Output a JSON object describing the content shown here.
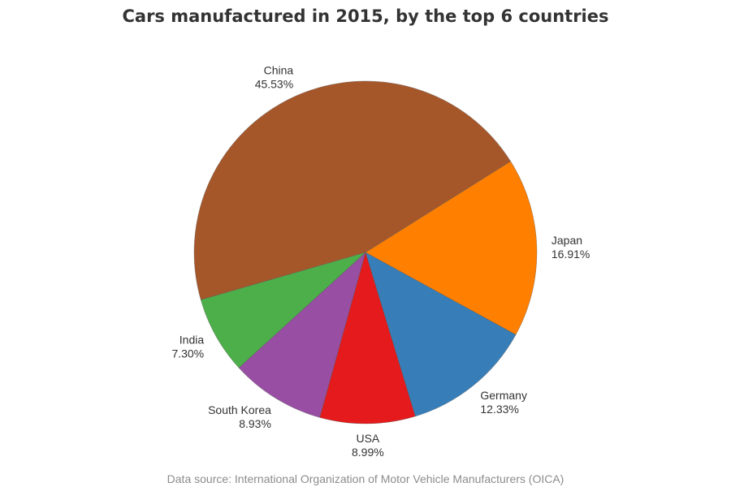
{
  "chart_data": {
    "type": "pie",
    "title": "Cars manufactured in 2015, by the top 6 countries",
    "source": "Data source: International Organization of Motor Vehicle Manufacturers (OICA)",
    "slices": [
      {
        "label": "China",
        "value": 45.53,
        "value_label": "45.53%",
        "color": "#a6572a"
      },
      {
        "label": "Japan",
        "value": 16.91,
        "value_label": "16.91%",
        "color": "#ff7f00"
      },
      {
        "label": "Germany",
        "value": 12.33,
        "value_label": "12.33%",
        "color": "#377eb8"
      },
      {
        "label": "USA",
        "value": 8.99,
        "value_label": "8.99%",
        "color": "#e41a1c"
      },
      {
        "label": "South Korea",
        "value": 8.93,
        "value_label": "8.93%",
        "color": "#984ea3"
      },
      {
        "label": "India",
        "value": 7.3,
        "value_label": "7.30%",
        "color": "#4daf4a"
      }
    ]
  }
}
